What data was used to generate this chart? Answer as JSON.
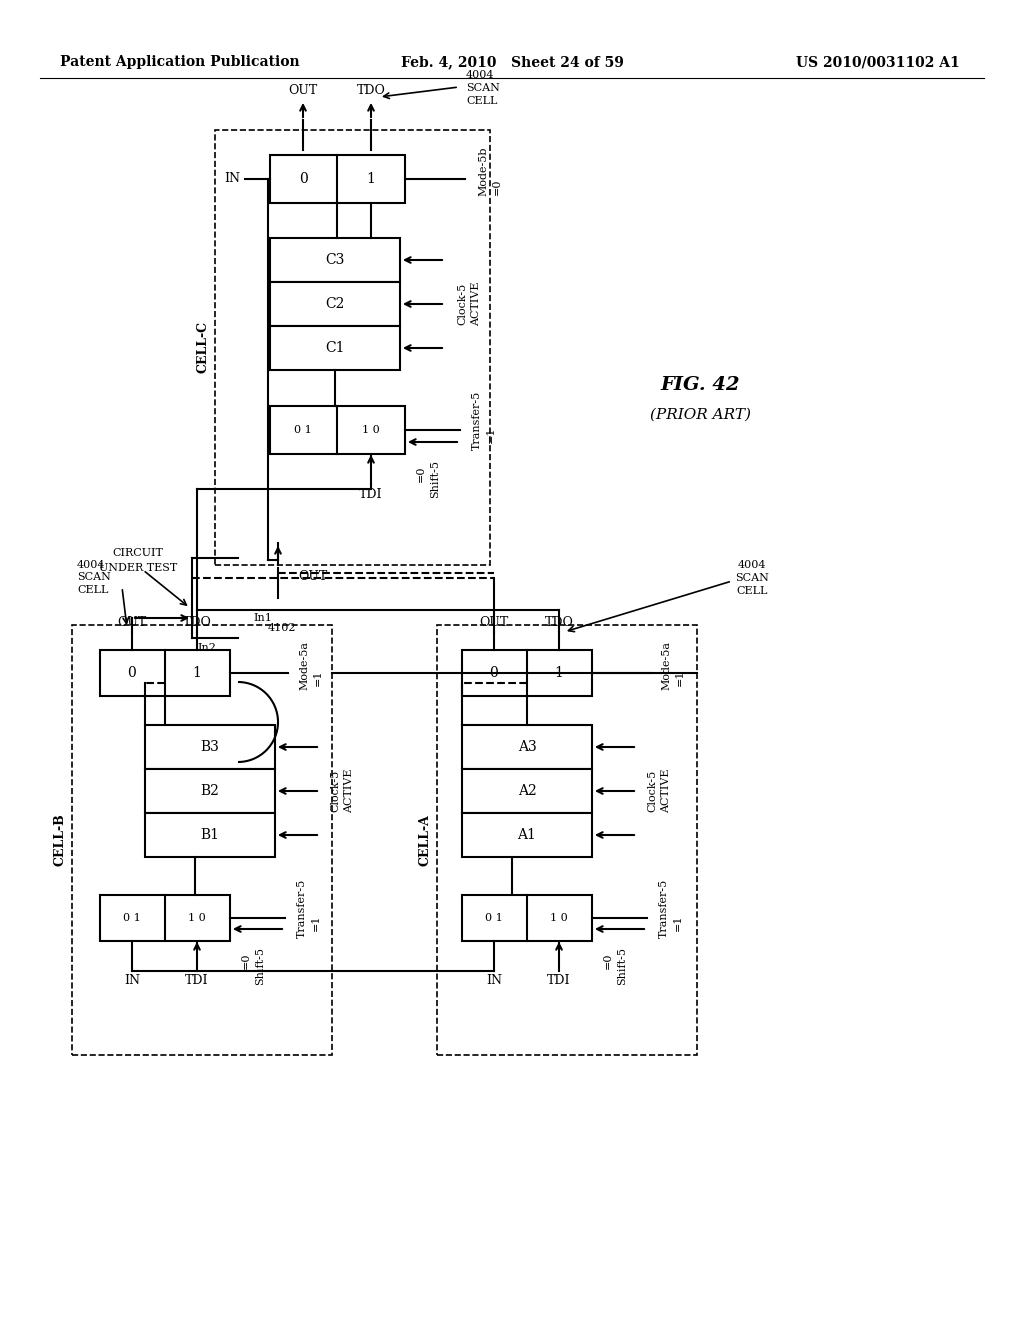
{
  "title_left": "Patent Application Publication",
  "title_mid": "Feb. 4, 2010   Sheet 24 of 59",
  "title_right": "US 2010/0031102 A1",
  "fig_label": "FIG. 42",
  "fig_sublabel": "(PRIOR ART)",
  "background": "#ffffff"
}
